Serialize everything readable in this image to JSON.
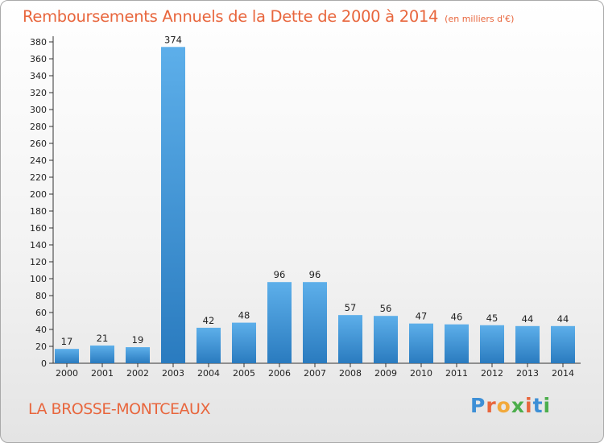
{
  "header": {
    "title": "Remboursements Annuels de la Dette de 2000 à 2014",
    "unit": "(en milliers d'€)"
  },
  "footer": {
    "place": "LA BROSSE-MONTCEAUX",
    "logo": "Proxiti",
    "logo_colors": [
      "#3d8fd6",
      "#e8663d",
      "#f2a93b",
      "#4cae4c",
      "#e8663d",
      "#3d8fd6",
      "#4cae4c"
    ]
  },
  "chart_data": {
    "type": "bar",
    "title": "Remboursements Annuels de la Dette de 2000 à 2014",
    "categories": [
      "2000",
      "2001",
      "2002",
      "2003",
      "2004",
      "2005",
      "2006",
      "2007",
      "2008",
      "2009",
      "2010",
      "2011",
      "2012",
      "2013",
      "2014"
    ],
    "values": [
      17,
      21,
      19,
      374,
      42,
      48,
      96,
      96,
      57,
      56,
      47,
      46,
      45,
      44,
      44
    ],
    "ylim": [
      0,
      380
    ],
    "yticks": [
      0,
      20,
      40,
      60,
      80,
      100,
      120,
      140,
      160,
      180,
      200,
      220,
      240,
      260,
      280,
      300,
      320,
      340,
      360,
      380
    ],
    "grid": false,
    "legend": "none",
    "bar_color_light": "#5dafea",
    "bar_color_dark": "#2a7bbf"
  }
}
